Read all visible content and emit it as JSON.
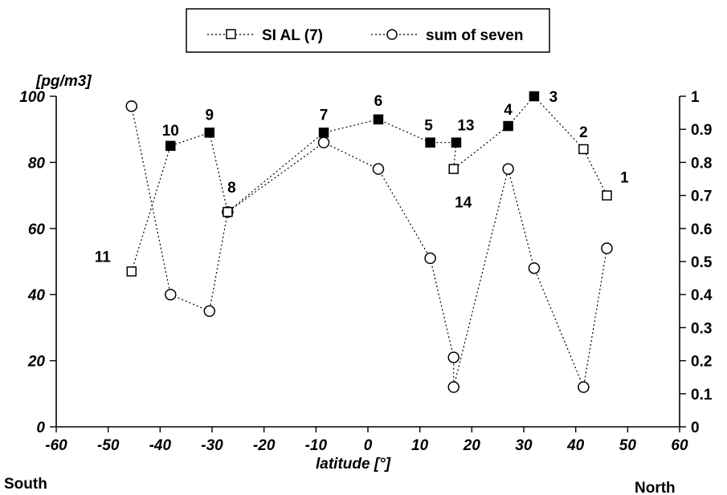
{
  "chart_data": {
    "type": "scatter",
    "xlabel": "latitude [°]",
    "ylabel": "[pg/m3]",
    "xlim": [
      -60,
      60
    ],
    "ylim": [
      0,
      100
    ],
    "y2lim": [
      0,
      1
    ],
    "x_ticks": [
      -60,
      -50,
      -40,
      -30,
      -20,
      -10,
      0,
      10,
      20,
      30,
      40,
      50,
      60
    ],
    "y_ticks": [
      0,
      20,
      40,
      60,
      80,
      100
    ],
    "y2_ticks": [
      "0",
      "0.1",
      "0.2",
      "0.3",
      "0.4",
      "0.5",
      "0.6",
      "0.7",
      "0.8",
      "0.9",
      "1"
    ],
    "legend_position": "top-center",
    "side_labels": {
      "south": "South",
      "north": "North"
    },
    "series": [
      {
        "name": "SI AL (7)",
        "marker": "square",
        "x": [
          -45.5,
          -38,
          -30.5,
          -27,
          -8.5,
          2,
          12,
          17,
          16.5,
          27,
          32,
          41.5,
          46
        ],
        "y": [
          47,
          85,
          89,
          65,
          89,
          93,
          86,
          86,
          78,
          91,
          100,
          84,
          70
        ],
        "filled": [
          false,
          true,
          true,
          false,
          true,
          true,
          true,
          true,
          false,
          true,
          true,
          false,
          false
        ],
        "labels": [
          "11",
          "10",
          "9",
          "8",
          "7",
          "6",
          "5",
          "13",
          "14",
          "4",
          "3",
          "2",
          "1"
        ]
      },
      {
        "name": "sum of seven",
        "marker": "circle",
        "x": [
          -45.5,
          -38,
          -30.5,
          -27,
          -8.5,
          2,
          12,
          16.5,
          16.5,
          27,
          32,
          41.5,
          46
        ],
        "y": [
          0.97,
          0.4,
          0.35,
          0.65,
          0.86,
          0.78,
          0.51,
          0.21,
          0.12,
          0.78,
          0.48,
          0.12,
          0.54
        ]
      }
    ]
  }
}
